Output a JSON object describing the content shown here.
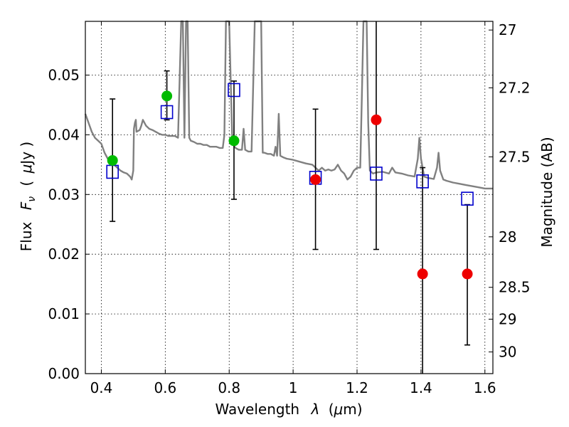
{
  "chart_data": {
    "type": "scatter",
    "title": "",
    "xlabel": {
      "prefix": "Wavelength",
      "symbol": "λ",
      "unit_open": "(",
      "unit_mu": "μ",
      "unit_rest": "m)"
    },
    "ylabel": {
      "prefix": "Flux",
      "symbol": "F",
      "subscript": "ν",
      "unit_open": "(",
      "unit_mu": "μ",
      "unit_rest": "Jy )"
    },
    "y2label": "Magnitude (AB)",
    "xlim": [
      0.35,
      1.625
    ],
    "ylim": [
      0.0,
      0.059
    ],
    "grid": true,
    "x_ticks": [
      {
        "value": 0.4,
        "label": "0.4"
      },
      {
        "value": 0.6,
        "label": "0.6"
      },
      {
        "value": 0.8,
        "label": "0.8"
      },
      {
        "value": 1.0,
        "label": "1"
      },
      {
        "value": 1.2,
        "label": "1.2"
      },
      {
        "value": 1.4,
        "label": "1.4"
      },
      {
        "value": 1.6,
        "label": "1.6"
      }
    ],
    "y_ticks": [
      {
        "value": 0.0,
        "label": "0.00"
      },
      {
        "value": 0.01,
        "label": "0.01"
      },
      {
        "value": 0.02,
        "label": "0.02"
      },
      {
        "value": 0.03,
        "label": "0.03"
      },
      {
        "value": 0.04,
        "label": "0.04"
      },
      {
        "value": 0.05,
        "label": "0.05"
      }
    ],
    "y2_ticks": [
      {
        "mag": 27,
        "label": "27"
      },
      {
        "mag": 27.2,
        "label": "27.2"
      },
      {
        "mag": 27.5,
        "label": "27.5"
      },
      {
        "mag": 28,
        "label": "28"
      },
      {
        "mag": 28.5,
        "label": "28.5"
      },
      {
        "mag": 29,
        "label": "29"
      },
      {
        "mag": 30,
        "label": "30"
      }
    ],
    "colors": {
      "spectrum": "#808080",
      "model_box": "#0000cc",
      "green": "#00bb00",
      "red": "#ee0000",
      "errorbar": "#000000",
      "grid": "#000000"
    },
    "series": [
      {
        "kind": "spectrum",
        "points": [
          [
            0.35,
            0.0435
          ],
          [
            0.36,
            0.042
          ],
          [
            0.37,
            0.0405
          ],
          [
            0.38,
            0.0395
          ],
          [
            0.39,
            0.039
          ],
          [
            0.4,
            0.0385
          ],
          [
            0.41,
            0.037
          ],
          [
            0.42,
            0.036
          ],
          [
            0.43,
            0.0355
          ],
          [
            0.44,
            0.035
          ],
          [
            0.45,
            0.0345
          ],
          [
            0.46,
            0.034
          ],
          [
            0.47,
            0.0337
          ],
          [
            0.48,
            0.0335
          ],
          [
            0.49,
            0.033
          ],
          [
            0.495,
            0.0325
          ],
          [
            0.5,
            0.034
          ],
          [
            0.502,
            0.041
          ],
          [
            0.505,
            0.042
          ],
          [
            0.508,
            0.0425
          ],
          [
            0.51,
            0.0405
          ],
          [
            0.52,
            0.0408
          ],
          [
            0.525,
            0.0415
          ],
          [
            0.53,
            0.0425
          ],
          [
            0.54,
            0.0415
          ],
          [
            0.55,
            0.041
          ],
          [
            0.56,
            0.0408
          ],
          [
            0.57,
            0.0405
          ],
          [
            0.58,
            0.0402
          ],
          [
            0.59,
            0.04
          ],
          [
            0.6,
            0.04
          ],
          [
            0.61,
            0.0398
          ],
          [
            0.62,
            0.0398
          ],
          [
            0.63,
            0.0398
          ],
          [
            0.64,
            0.0395
          ],
          [
            0.65,
            0.059
          ],
          [
            0.655,
            0.059
          ],
          [
            0.66,
            0.0395
          ],
          [
            0.665,
            0.059
          ],
          [
            0.67,
            0.059
          ],
          [
            0.675,
            0.0395
          ],
          [
            0.68,
            0.039
          ],
          [
            0.69,
            0.0388
          ],
          [
            0.7,
            0.0385
          ],
          [
            0.71,
            0.0385
          ],
          [
            0.72,
            0.0383
          ],
          [
            0.73,
            0.0383
          ],
          [
            0.74,
            0.038
          ],
          [
            0.75,
            0.038
          ],
          [
            0.76,
            0.038
          ],
          [
            0.77,
            0.0378
          ],
          [
            0.78,
            0.0378
          ],
          [
            0.785,
            0.04
          ],
          [
            0.79,
            0.059
          ],
          [
            0.8,
            0.059
          ],
          [
            0.81,
            0.0385
          ],
          [
            0.82,
            0.0378
          ],
          [
            0.83,
            0.0375
          ],
          [
            0.84,
            0.0375
          ],
          [
            0.845,
            0.041
          ],
          [
            0.85,
            0.0375
          ],
          [
            0.86,
            0.0372
          ],
          [
            0.87,
            0.0372
          ],
          [
            0.88,
            0.059
          ],
          [
            0.89,
            0.059
          ],
          [
            0.895,
            0.059
          ],
          [
            0.9,
            0.059
          ],
          [
            0.905,
            0.037
          ],
          [
            0.91,
            0.037
          ],
          [
            0.92,
            0.0368
          ],
          [
            0.93,
            0.0368
          ],
          [
            0.94,
            0.0365
          ],
          [
            0.945,
            0.038
          ],
          [
            0.95,
            0.0365
          ],
          [
            0.955,
            0.0435
          ],
          [
            0.96,
            0.0365
          ],
          [
            0.97,
            0.0362
          ],
          [
            0.98,
            0.036
          ],
          [
            1.0,
            0.0358
          ],
          [
            1.02,
            0.0355
          ],
          [
            1.04,
            0.0352
          ],
          [
            1.06,
            0.035
          ],
          [
            1.07,
            0.0345
          ],
          [
            1.08,
            0.034
          ],
          [
            1.09,
            0.0345
          ],
          [
            1.1,
            0.034
          ],
          [
            1.11,
            0.0342
          ],
          [
            1.12,
            0.034
          ],
          [
            1.13,
            0.0342
          ],
          [
            1.14,
            0.035
          ],
          [
            1.15,
            0.034
          ],
          [
            1.16,
            0.0335
          ],
          [
            1.17,
            0.0325
          ],
          [
            1.18,
            0.033
          ],
          [
            1.19,
            0.034
          ],
          [
            1.2,
            0.0345
          ],
          [
            1.21,
            0.0345
          ],
          [
            1.215,
            0.046
          ],
          [
            1.22,
            0.059
          ],
          [
            1.23,
            0.059
          ],
          [
            1.235,
            0.042
          ],
          [
            1.24,
            0.034
          ],
          [
            1.25,
            0.0335
          ],
          [
            1.26,
            0.0337
          ],
          [
            1.28,
            0.0338
          ],
          [
            1.3,
            0.0335
          ],
          [
            1.31,
            0.0345
          ],
          [
            1.32,
            0.0337
          ],
          [
            1.34,
            0.0335
          ],
          [
            1.36,
            0.0332
          ],
          [
            1.38,
            0.033
          ],
          [
            1.39,
            0.036
          ],
          [
            1.395,
            0.0395
          ],
          [
            1.4,
            0.036
          ],
          [
            1.41,
            0.033
          ],
          [
            1.42,
            0.0328
          ],
          [
            1.44,
            0.0326
          ],
          [
            1.45,
            0.0345
          ],
          [
            1.455,
            0.037
          ],
          [
            1.46,
            0.034
          ],
          [
            1.47,
            0.0325
          ],
          [
            1.48,
            0.0323
          ],
          [
            1.5,
            0.032
          ],
          [
            1.52,
            0.0318
          ],
          [
            1.54,
            0.0316
          ],
          [
            1.56,
            0.0314
          ],
          [
            1.58,
            0.0312
          ],
          [
            1.6,
            0.031
          ],
          [
            1.625,
            0.031
          ]
        ]
      },
      {
        "kind": "model_boxes",
        "points": [
          [
            0.435,
            0.0338
          ],
          [
            0.605,
            0.0438
          ],
          [
            0.815,
            0.0475
          ],
          [
            1.07,
            0.0328
          ],
          [
            1.26,
            0.0335
          ],
          [
            1.405,
            0.0322
          ],
          [
            1.545,
            0.0293
          ]
        ]
      },
      {
        "kind": "green_points",
        "points": [
          [
            0.435,
            0.0357
          ],
          [
            0.605,
            0.0465
          ],
          [
            0.815,
            0.039
          ]
        ]
      },
      {
        "kind": "red_points",
        "points": [
          [
            1.07,
            0.0325
          ],
          [
            1.26,
            0.0425
          ],
          [
            1.405,
            0.0167
          ],
          [
            1.545,
            0.0167
          ]
        ]
      },
      {
        "kind": "errorbars",
        "points": [
          {
            "x": 0.435,
            "low": 0.0255,
            "high": 0.046
          },
          {
            "x": 0.605,
            "low": 0.0425,
            "high": 0.0507
          },
          {
            "x": 0.815,
            "low": 0.0292,
            "high": 0.049
          },
          {
            "x": 1.07,
            "low": 0.0208,
            "high": 0.0443
          },
          {
            "x": 1.26,
            "low": 0.0208,
            "high": 0.059
          },
          {
            "x": 1.405,
            "low": 0.0,
            "high": 0.0345
          },
          {
            "x": 1.545,
            "low": 0.0048,
            "high": 0.0283
          }
        ]
      }
    ]
  }
}
